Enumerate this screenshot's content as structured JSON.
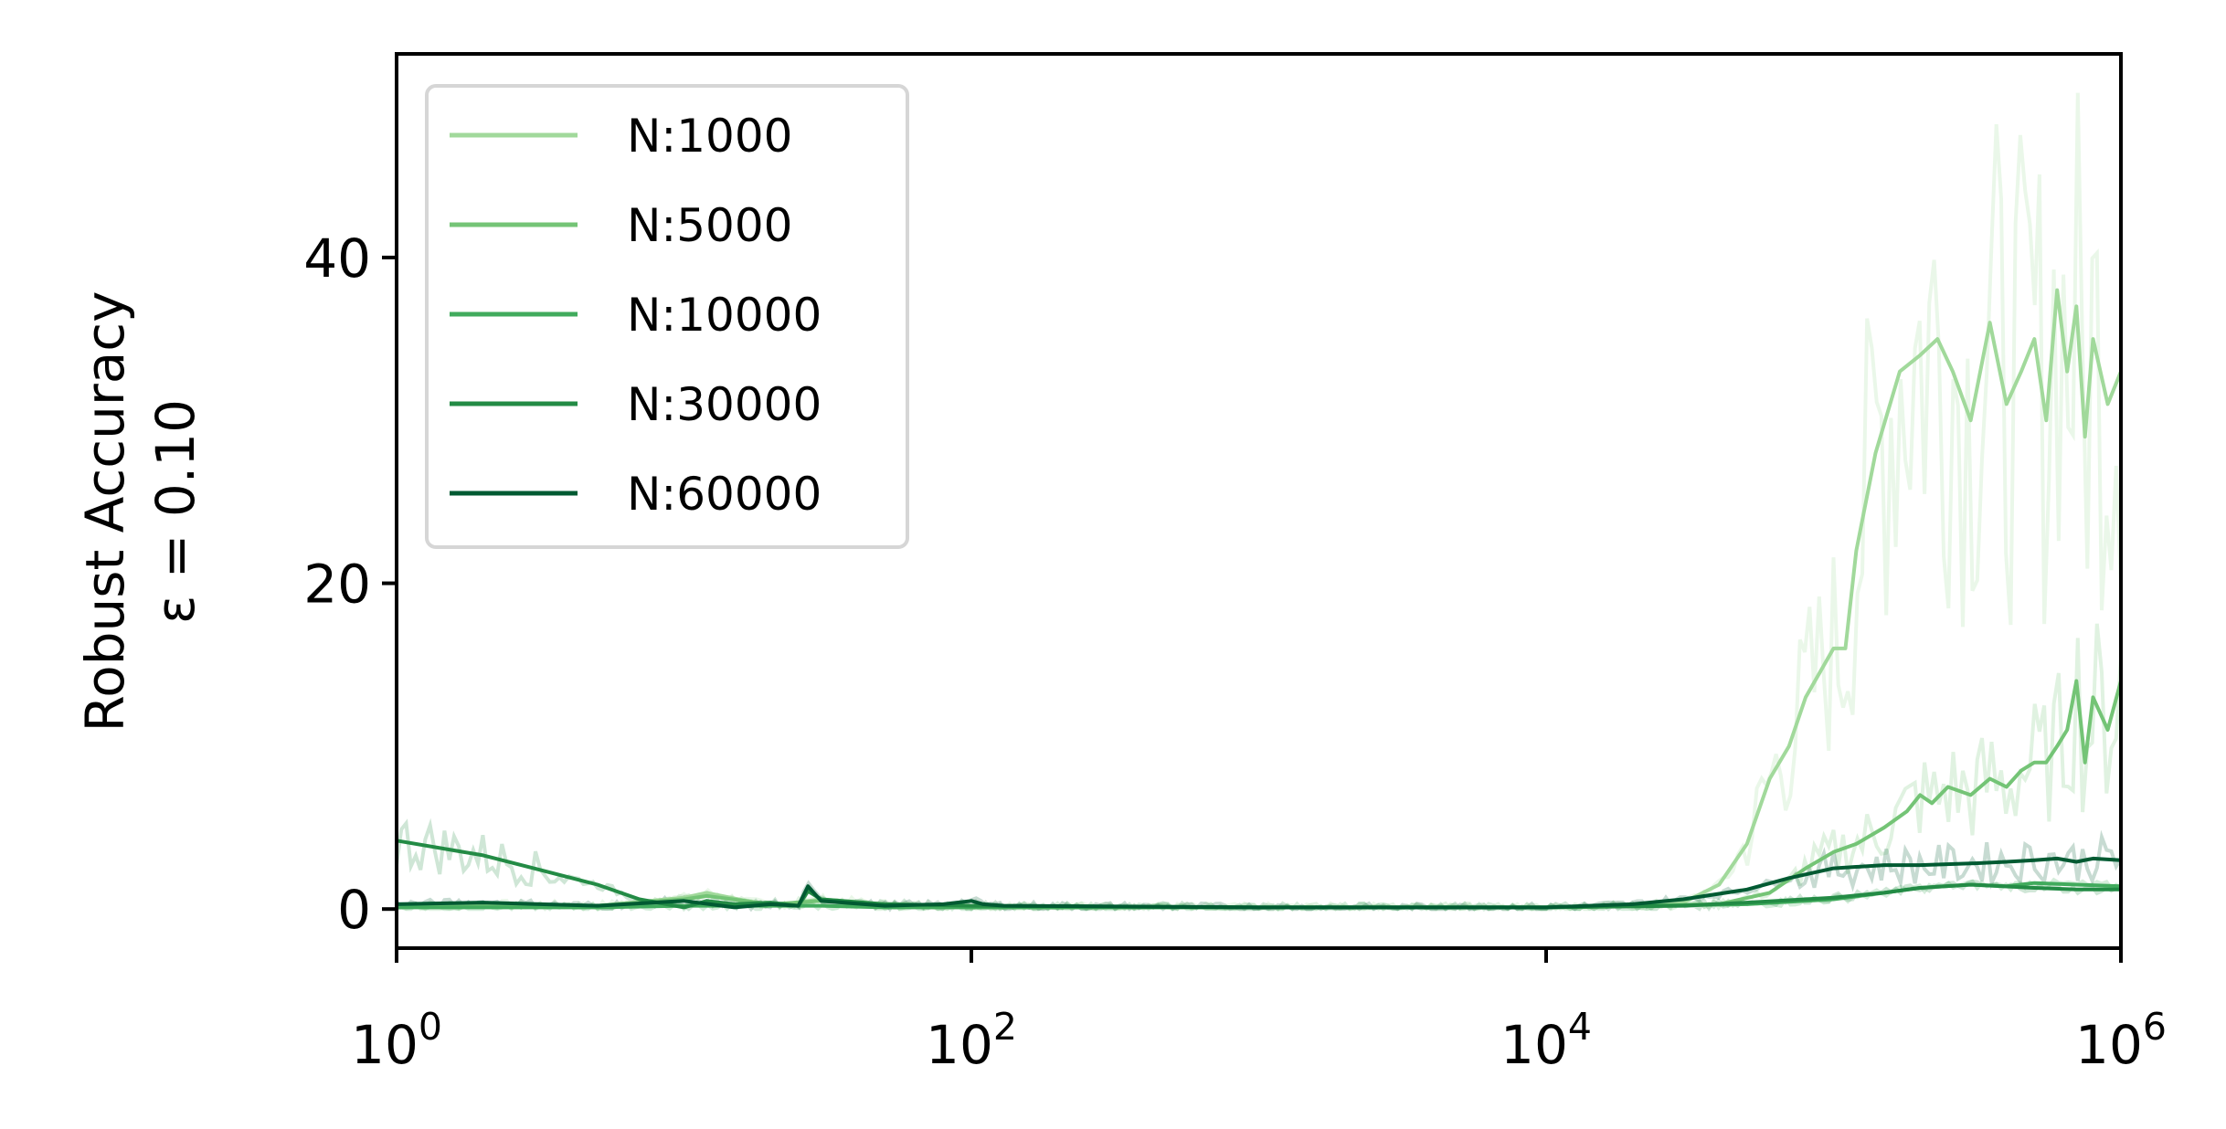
{
  "chart_data": {
    "type": "line",
    "xscale": "log",
    "xlim": [
      1,
      1000000
    ],
    "ylim": [
      -2.4,
      52.5
    ],
    "ylabel_line1": "Robust Accuracy",
    "ylabel_line2": "ε = 0.10",
    "x_ticks": [
      {
        "value": 1,
        "base": "10",
        "exp": "0"
      },
      {
        "value": 100,
        "base": "10",
        "exp": "2"
      },
      {
        "value": 10000,
        "base": "10",
        "exp": "4"
      },
      {
        "value": 1000000,
        "base": "10",
        "exp": "6"
      }
    ],
    "y_ticks": [
      {
        "value": 0,
        "label": "0"
      },
      {
        "value": 20,
        "label": "20"
      },
      {
        "value": 40,
        "label": "40"
      }
    ],
    "grid": false,
    "legend_position": "top-left",
    "series": [
      {
        "name": "N:1000",
        "color": "#a1d99b",
        "x": [
          1,
          2,
          5,
          10,
          12,
          20,
          30,
          50,
          100,
          1000,
          10000,
          20000,
          30000,
          40000,
          50000,
          60000,
          70000,
          80000,
          100000,
          110000,
          120000,
          140000,
          170000,
          200000,
          230000,
          260000,
          300000,
          350000,
          400000,
          450000,
          500000,
          550000,
          600000,
          650000,
          700000,
          750000,
          800000,
          900000,
          1000000
        ],
        "values": [
          0.2,
          0.3,
          0.2,
          0.7,
          1.0,
          0.2,
          0.6,
          0.3,
          0.2,
          0.1,
          0.1,
          0.2,
          0.4,
          1.5,
          4,
          8,
          10,
          13,
          16,
          16,
          22,
          28,
          33,
          34,
          35,
          33,
          30,
          36,
          31,
          33,
          35,
          30,
          38,
          33,
          37,
          29,
          35,
          31,
          33
        ]
      },
      {
        "name": "N:5000",
        "color": "#74c476",
        "x": [
          1,
          2,
          5,
          10,
          12,
          20,
          30,
          50,
          100,
          1000,
          10000,
          20000,
          40000,
          60000,
          80000,
          100000,
          120000,
          150000,
          180000,
          200000,
          220000,
          250000,
          300000,
          350000,
          400000,
          450000,
          500000,
          550000,
          600000,
          650000,
          700000,
          750000,
          800000,
          900000,
          1000000
        ],
        "values": [
          0.1,
          0.2,
          0.2,
          0.6,
          0.8,
          0.3,
          0.5,
          0.2,
          0.1,
          0.1,
          0.1,
          0.2,
          0.3,
          1.0,
          2.5,
          3.5,
          4,
          5,
          6,
          7,
          6.5,
          7.5,
          7,
          8,
          7.5,
          8.5,
          9,
          9,
          10,
          11,
          14,
          9,
          13,
          11,
          14
        ]
      },
      {
        "name": "N:10000",
        "color": "#41ab5d",
        "x": [
          1,
          2,
          5,
          10,
          20,
          30,
          50,
          100,
          1000,
          10000,
          50000,
          100000,
          150000,
          200000,
          300000,
          400000,
          500000,
          700000,
          1000000
        ],
        "values": [
          0.1,
          0.1,
          0.1,
          0.2,
          0.2,
          0.2,
          0.1,
          0.1,
          0.1,
          0.1,
          0.3,
          0.6,
          1.0,
          1.3,
          1.5,
          1.4,
          1.6,
          1.5,
          1.4
        ]
      },
      {
        "name": "N:30000",
        "color": "#238b45",
        "x": [
          1,
          2,
          3,
          5,
          7,
          10,
          12,
          15,
          20,
          25,
          27,
          30,
          50,
          100,
          1000,
          10000,
          30000,
          50000,
          100000,
          150000,
          200000,
          300000,
          500000,
          700000,
          1000000
        ],
        "values": [
          4.2,
          3.3,
          2.5,
          1.5,
          0.6,
          0.1,
          0.5,
          0.3,
          0.4,
          0.2,
          1.1,
          0.6,
          0.3,
          0.2,
          0.1,
          0.1,
          0.2,
          0.4,
          0.7,
          1.0,
          1.3,
          1.5,
          1.3,
          1.2,
          1.2
        ]
      },
      {
        "name": "N:60000",
        "color": "#005a32",
        "x": [
          1,
          2,
          5,
          10,
          15,
          20,
          25,
          27,
          30,
          50,
          80,
          100,
          110,
          130,
          1000,
          10000,
          20000,
          30000,
          50000,
          70000,
          100000,
          150000,
          200000,
          300000,
          400000,
          500000,
          600000,
          700000,
          800000,
          1000000
        ],
        "values": [
          0.3,
          0.4,
          0.2,
          0.5,
          0.1,
          0.3,
          0.2,
          1.4,
          0.5,
          0.2,
          0.3,
          0.5,
          0.3,
          0.2,
          0.1,
          0.1,
          0.3,
          0.6,
          1.2,
          1.9,
          2.5,
          2.7,
          2.7,
          2.8,
          2.9,
          3.0,
          3.1,
          2.9,
          3.1,
          3.0
        ]
      }
    ]
  }
}
